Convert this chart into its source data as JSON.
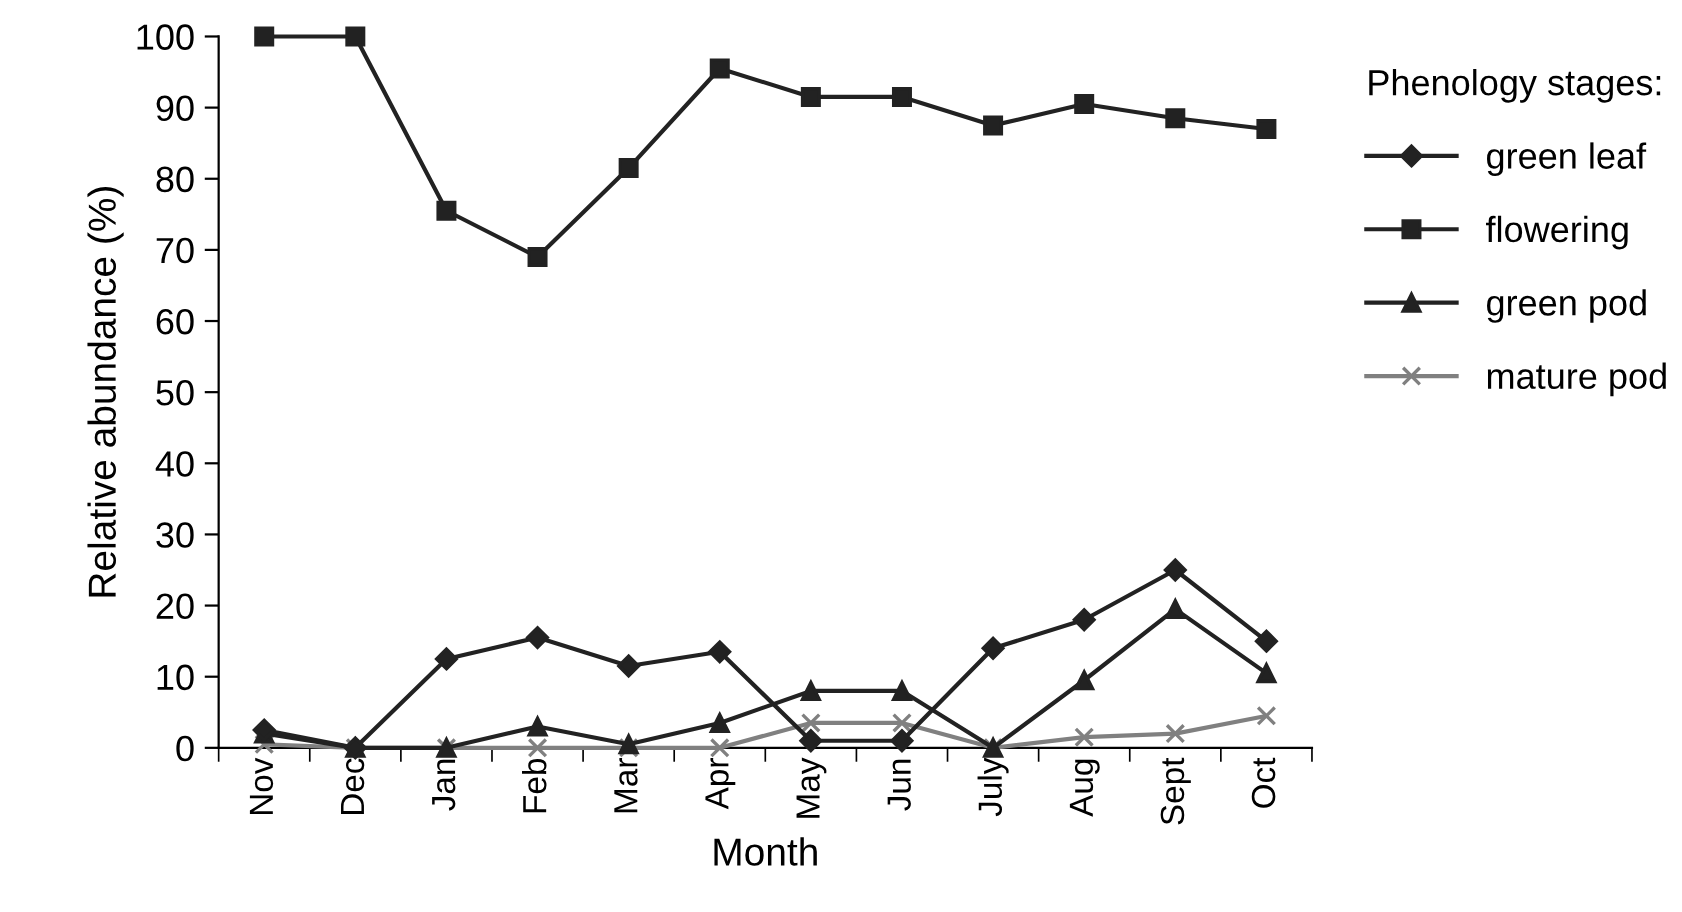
{
  "chart_data": {
    "type": "line",
    "xlabel": "Month",
    "ylabel": "Relative abundance (%)",
    "legend_title": "Phenology stages:",
    "categories": [
      "Nov",
      "Dec",
      "Jan",
      "Feb",
      "Mar",
      "Apr",
      "May",
      "Jun",
      "July",
      "Aug",
      "Sept",
      "Oct"
    ],
    "ylim": [
      0,
      100
    ],
    "yticks": [
      0,
      10,
      20,
      30,
      40,
      50,
      60,
      70,
      80,
      90,
      100
    ],
    "grid": false,
    "legend": "right",
    "line_style": "solid",
    "series": [
      {
        "name": "green leaf",
        "color": "#222222",
        "marker": "diamond",
        "values": [
          2.5,
          0,
          12.5,
          15.5,
          11.5,
          13.5,
          1,
          1,
          14,
          18,
          25,
          15
        ]
      },
      {
        "name": "flowering",
        "color": "#222222",
        "marker": "square",
        "values": [
          100,
          100,
          75.5,
          69,
          81.5,
          95.5,
          91.5,
          91.5,
          87.5,
          90.5,
          88.5,
          87
        ]
      },
      {
        "name": "green pod",
        "color": "#222222",
        "marker": "triangle",
        "values": [
          2,
          0,
          0,
          3,
          0.5,
          3.5,
          8,
          8,
          0,
          9.5,
          19.5,
          10.5
        ]
      },
      {
        "name": "mature pod",
        "color": "#808080",
        "marker": "cross",
        "values": [
          0.5,
          0,
          0,
          0,
          0,
          0,
          3.5,
          3.5,
          0,
          1.5,
          2,
          4.5
        ]
      }
    ]
  }
}
